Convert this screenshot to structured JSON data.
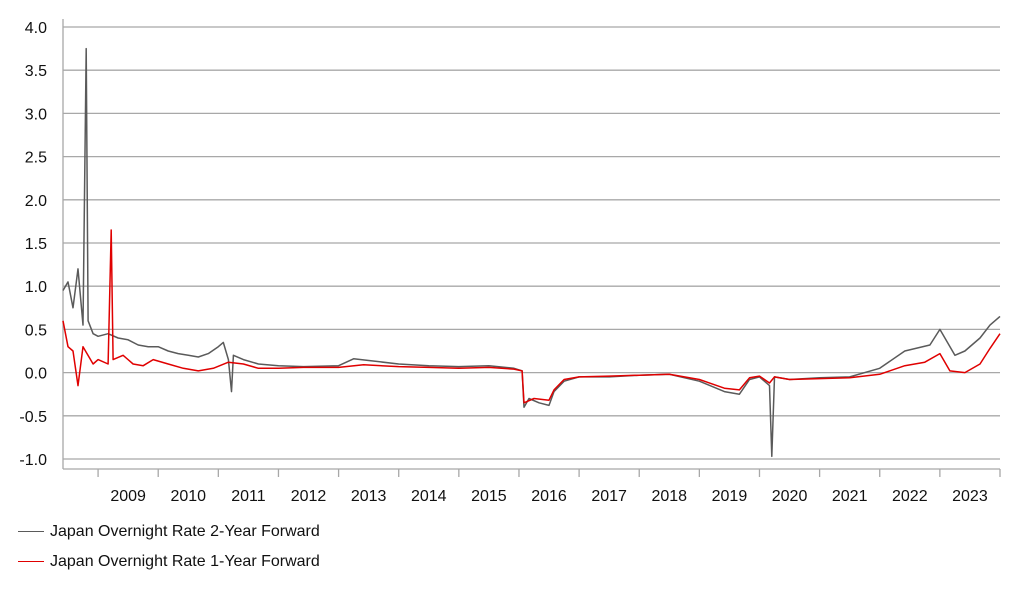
{
  "chart_data": {
    "type": "line",
    "title": "",
    "xlabel": "",
    "ylabel": "",
    "ylim": [
      -1.0,
      4.0
    ],
    "xlim": [
      "2008-06",
      "2024-01"
    ],
    "y_ticks": [
      "4.0",
      "3.5",
      "3.0",
      "2.5",
      "2.0",
      "1.5",
      "1.0",
      "0.5",
      "0.0",
      "-0.5",
      "-1.0"
    ],
    "x_ticks": [
      "2009",
      "2010",
      "2011",
      "2012",
      "2013",
      "2014",
      "2015",
      "2016",
      "2017",
      "2018",
      "2019",
      "2020",
      "2021",
      "2022",
      "2023"
    ],
    "grid": "horizontal",
    "legend_position": "bottom-left",
    "series": [
      {
        "name": "Japan Overnight Rate 2-Year Forward",
        "color": "#5a5a5a",
        "points": [
          [
            "2008-06",
            0.95
          ],
          [
            "2008-07",
            1.05
          ],
          [
            "2008-08",
            0.75
          ],
          [
            "2008-09",
            1.2
          ],
          [
            "2008-10",
            0.55
          ],
          [
            "2008-10-20",
            3.75
          ],
          [
            "2008-11",
            0.6
          ],
          [
            "2008-12",
            0.45
          ],
          [
            "2009-01",
            0.42
          ],
          [
            "2009-03",
            0.45
          ],
          [
            "2009-05",
            0.4
          ],
          [
            "2009-07",
            0.38
          ],
          [
            "2009-09",
            0.32
          ],
          [
            "2009-11",
            0.3
          ],
          [
            "2010-01",
            0.3
          ],
          [
            "2010-03",
            0.25
          ],
          [
            "2010-05",
            0.22
          ],
          [
            "2010-07",
            0.2
          ],
          [
            "2010-09",
            0.18
          ],
          [
            "2010-11",
            0.22
          ],
          [
            "2011-01",
            0.3
          ],
          [
            "2011-02",
            0.35
          ],
          [
            "2011-03",
            0.15
          ],
          [
            "2011-03-20",
            -0.22
          ],
          [
            "2011-04",
            0.2
          ],
          [
            "2011-06",
            0.15
          ],
          [
            "2011-09",
            0.1
          ],
          [
            "2012-01",
            0.08
          ],
          [
            "2012-06",
            0.07
          ],
          [
            "2013-01",
            0.08
          ],
          [
            "2013-04",
            0.16
          ],
          [
            "2013-07",
            0.14
          ],
          [
            "2014-01",
            0.1
          ],
          [
            "2014-07",
            0.08
          ],
          [
            "2015-01",
            0.07
          ],
          [
            "2015-07",
            0.08
          ],
          [
            "2015-12",
            0.05
          ],
          [
            "2016-01-20",
            0.02
          ],
          [
            "2016-02",
            -0.4
          ],
          [
            "2016-03",
            -0.3
          ],
          [
            "2016-05",
            -0.35
          ],
          [
            "2016-07",
            -0.38
          ],
          [
            "2016-08",
            -0.22
          ],
          [
            "2016-10",
            -0.1
          ],
          [
            "2017-01",
            -0.05
          ],
          [
            "2017-07",
            -0.05
          ],
          [
            "2018-01",
            -0.03
          ],
          [
            "2018-07",
            -0.02
          ],
          [
            "2019-01",
            -0.1
          ],
          [
            "2019-06",
            -0.22
          ],
          [
            "2019-09",
            -0.25
          ],
          [
            "2019-11",
            -0.08
          ],
          [
            "2020-01",
            -0.05
          ],
          [
            "2020-03",
            -0.15
          ],
          [
            "2020-03-15",
            -0.97
          ],
          [
            "2020-04",
            -0.05
          ],
          [
            "2020-07",
            -0.08
          ],
          [
            "2021-01",
            -0.06
          ],
          [
            "2021-07",
            -0.05
          ],
          [
            "2022-01",
            0.05
          ],
          [
            "2022-06",
            0.25
          ],
          [
            "2022-11",
            0.32
          ],
          [
            "2023-01",
            0.5
          ],
          [
            "2023-04",
            0.2
          ],
          [
            "2023-06",
            0.25
          ],
          [
            "2023-09",
            0.4
          ],
          [
            "2023-11",
            0.55
          ],
          [
            "2024-01",
            0.65
          ]
        ]
      },
      {
        "name": "Japan Overnight Rate 1-Year Forward",
        "color": "#e00000",
        "points": [
          [
            "2008-06",
            0.6
          ],
          [
            "2008-07",
            0.3
          ],
          [
            "2008-08",
            0.25
          ],
          [
            "2008-09",
            -0.15
          ],
          [
            "2008-10",
            0.3
          ],
          [
            "2008-12",
            0.1
          ],
          [
            "2009-01",
            0.15
          ],
          [
            "2009-03",
            0.1
          ],
          [
            "2009-03-20",
            1.65
          ],
          [
            "2009-04",
            0.15
          ],
          [
            "2009-06",
            0.2
          ],
          [
            "2009-08",
            0.1
          ],
          [
            "2009-10",
            0.08
          ],
          [
            "2009-12",
            0.15
          ],
          [
            "2010-03",
            0.1
          ],
          [
            "2010-06",
            0.05
          ],
          [
            "2010-09",
            0.02
          ],
          [
            "2010-12",
            0.05
          ],
          [
            "2011-03",
            0.12
          ],
          [
            "2011-06",
            0.1
          ],
          [
            "2011-09",
            0.05
          ],
          [
            "2012-01",
            0.05
          ],
          [
            "2012-06",
            0.06
          ],
          [
            "2013-01",
            0.06
          ],
          [
            "2013-06",
            0.09
          ],
          [
            "2014-01",
            0.07
          ],
          [
            "2014-07",
            0.06
          ],
          [
            "2015-01",
            0.05
          ],
          [
            "2015-07",
            0.06
          ],
          [
            "2015-12",
            0.04
          ],
          [
            "2016-01-20",
            0.02
          ],
          [
            "2016-02",
            -0.35
          ],
          [
            "2016-04",
            -0.3
          ],
          [
            "2016-07",
            -0.32
          ],
          [
            "2016-08",
            -0.2
          ],
          [
            "2016-10",
            -0.08
          ],
          [
            "2017-01",
            -0.05
          ],
          [
            "2017-07",
            -0.04
          ],
          [
            "2018-01",
            -0.03
          ],
          [
            "2018-07",
            -0.02
          ],
          [
            "2019-01",
            -0.08
          ],
          [
            "2019-06",
            -0.18
          ],
          [
            "2019-09",
            -0.2
          ],
          [
            "2019-11",
            -0.06
          ],
          [
            "2020-01",
            -0.04
          ],
          [
            "2020-03",
            -0.12
          ],
          [
            "2020-04",
            -0.05
          ],
          [
            "2020-07",
            -0.08
          ],
          [
            "2021-01",
            -0.07
          ],
          [
            "2021-07",
            -0.06
          ],
          [
            "2022-01",
            -0.02
          ],
          [
            "2022-06",
            0.08
          ],
          [
            "2022-10",
            0.12
          ],
          [
            "2023-01",
            0.22
          ],
          [
            "2023-03",
            0.02
          ],
          [
            "2023-06",
            0.0
          ],
          [
            "2023-09",
            0.1
          ],
          [
            "2023-11",
            0.28
          ],
          [
            "2024-01",
            0.45
          ]
        ]
      }
    ]
  }
}
